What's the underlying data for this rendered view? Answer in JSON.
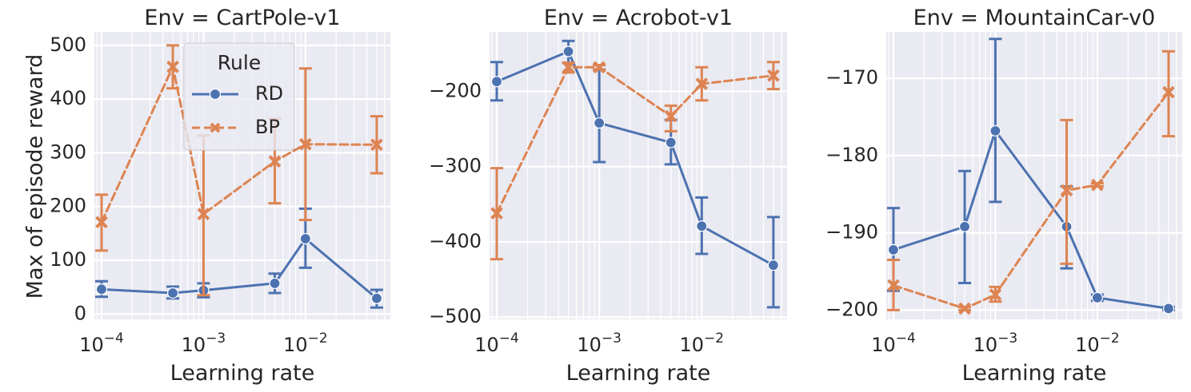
{
  "figure": {
    "ylabel": "Max of episode reward",
    "xlabel": "Learning rate",
    "legend": {
      "title": "Rule",
      "placement": "upper-center of first panel"
    }
  },
  "colors": {
    "background": "#eaeaf2",
    "grid": "#ffffff",
    "RD": "#4c72b0",
    "BP": "#dd8452"
  },
  "chart_data": [
    {
      "type": "line",
      "title": "Env = CartPole-v1",
      "xlabel": "Learning rate",
      "ylabel": "Max of episode reward",
      "xscale": "log",
      "xlim": [
        8.5e-05,
        0.068
      ],
      "ylim": [
        -10,
        525
      ],
      "xticks": [
        {
          "v": 0.0001,
          "base": "10",
          "exp": "−4"
        },
        {
          "v": 0.001,
          "base": "10",
          "exp": "−3"
        },
        {
          "v": 0.01,
          "base": "10",
          "exp": "−2"
        }
      ],
      "yticks": [
        {
          "v": 0,
          "label": "0"
        },
        {
          "v": 100,
          "label": "100"
        },
        {
          "v": 200,
          "label": "200"
        },
        {
          "v": 300,
          "label": "300"
        },
        {
          "v": 400,
          "label": "400"
        },
        {
          "v": 500,
          "label": "500"
        }
      ],
      "grid": true,
      "legend": true,
      "series": [
        {
          "name": "RD",
          "color": "#4c72b0",
          "marker": "circle",
          "dash": false,
          "x": [
            0.0001,
            0.0005,
            0.001,
            0.005,
            0.01,
            0.05
          ],
          "y": [
            46,
            39,
            44,
            57,
            140,
            29
          ],
          "err_low": [
            32,
            29,
            31,
            39,
            86,
            12
          ],
          "err_high": [
            61,
            51,
            57,
            75,
            196,
            45
          ]
        },
        {
          "name": "BP",
          "color": "#dd8452",
          "marker": "x",
          "dash": true,
          "x": [
            0.0001,
            0.0005,
            0.001,
            0.005,
            0.01,
            0.05
          ],
          "y": [
            171,
            460,
            186,
            284,
            316,
            315
          ],
          "err_low": [
            118,
            420,
            35,
            206,
            175,
            262
          ],
          "err_high": [
            222,
            500,
            332,
            363,
            457,
            368
          ]
        }
      ]
    },
    {
      "type": "line",
      "title": "Env = Acrobot-v1",
      "xlabel": "Learning rate",
      "xscale": "log",
      "xlim": [
        8.5e-05,
        0.068
      ],
      "ylim": [
        -503,
        -121
      ],
      "xticks": [
        {
          "v": 0.0001,
          "base": "10",
          "exp": "−4"
        },
        {
          "v": 0.001,
          "base": "10",
          "exp": "−3"
        },
        {
          "v": 0.01,
          "base": "10",
          "exp": "−2"
        }
      ],
      "yticks": [
        {
          "v": -500,
          "label": "−500"
        },
        {
          "v": -400,
          "label": "−400"
        },
        {
          "v": -300,
          "label": "−300"
        },
        {
          "v": -200,
          "label": "−200"
        }
      ],
      "grid": true,
      "series": [
        {
          "name": "RD",
          "color": "#4c72b0",
          "marker": "circle",
          "dash": false,
          "x": [
            0.0001,
            0.0005,
            0.001,
            0.005,
            0.01,
            0.05
          ],
          "y": [
            -187,
            -147,
            -242,
            -268,
            -379,
            -431
          ],
          "err_low": [
            -212,
            -162,
            -294,
            -297,
            -416,
            -487
          ],
          "err_high": [
            -161,
            -133,
            -171,
            -238,
            -341,
            -367
          ]
        },
        {
          "name": "BP",
          "color": "#dd8452",
          "marker": "x",
          "dash": true,
          "x": [
            0.0001,
            0.0005,
            0.001,
            0.005,
            0.01,
            0.05
          ],
          "y": [
            -362,
            -168,
            -168,
            -233,
            -190,
            -179
          ],
          "err_low": [
            -423,
            -175,
            -171,
            -253,
            -212,
            -197
          ],
          "err_high": [
            -302,
            -162,
            -165,
            -219,
            -168,
            -161
          ]
        }
      ]
    },
    {
      "type": "line",
      "title": "Env = MountainCar-v0",
      "xlabel": "Learning rate",
      "xscale": "log",
      "xlim": [
        8.5e-05,
        0.068
      ],
      "ylim": [
        -201.2,
        -164.0
      ],
      "xticks": [
        {
          "v": 0.0001,
          "base": "10",
          "exp": "−4"
        },
        {
          "v": 0.001,
          "base": "10",
          "exp": "−3"
        },
        {
          "v": 0.01,
          "base": "10",
          "exp": "−2"
        }
      ],
      "yticks": [
        {
          "v": -200,
          "label": "−200"
        },
        {
          "v": -190,
          "label": "−190"
        },
        {
          "v": -180,
          "label": "−180"
        },
        {
          "v": -170,
          "label": "−170"
        }
      ],
      "grid": true,
      "series": [
        {
          "name": "RD",
          "color": "#4c72b0",
          "marker": "circle",
          "dash": false,
          "x": [
            0.0001,
            0.0005,
            0.001,
            0.005,
            0.01,
            0.05
          ],
          "y": [
            -192.2,
            -189.2,
            -176.8,
            -189.2,
            -198.4,
            -199.8
          ],
          "err_low": [
            -197.5,
            -196.5,
            -186.0,
            -194.6,
            -198.8,
            -200.0
          ],
          "err_high": [
            -186.8,
            -182.0,
            -164.9,
            -184.0,
            -198.0,
            -199.6
          ]
        },
        {
          "name": "BP",
          "color": "#dd8452",
          "marker": "x",
          "dash": true,
          "x": [
            0.0001,
            0.0005,
            0.001,
            0.005,
            0.01,
            0.05
          ],
          "y": [
            -196.8,
            -199.8,
            -198.0,
            -184.5,
            -183.8,
            -171.8
          ],
          "err_low": [
            -200.0,
            -200.0,
            -198.9,
            -194.0,
            -184.0,
            -177.5
          ],
          "err_high": [
            -193.5,
            -199.6,
            -197.0,
            -175.4,
            -183.6,
            -166.5
          ]
        }
      ]
    }
  ]
}
